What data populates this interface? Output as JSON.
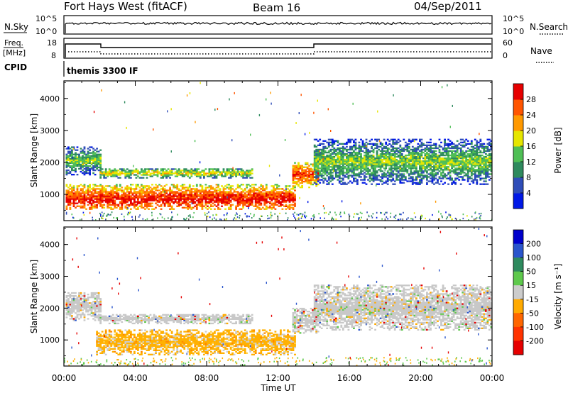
{
  "header": {
    "title": "Fort Hays West (fitACF)",
    "beam": "Beam 16",
    "date": "04/Sep/2011"
  },
  "nsky_panel": {
    "label": "N.Sky",
    "right_label": "N.Search",
    "left_ticks": [
      "10^5",
      "10^0"
    ],
    "right_ticks": [
      "10^5",
      "10^0"
    ]
  },
  "freq_panel": {
    "label_line1": "Freq.",
    "label_line2": "[MHz]",
    "right_label": "Nave",
    "left_ticks": [
      "18",
      "8"
    ],
    "right_ticks": [
      "60",
      "0"
    ]
  },
  "cpid_panel": {
    "label": "CPID",
    "text": "themis 3300 IF"
  },
  "time_axis": {
    "label": "Time UT",
    "ticks": [
      "00:00",
      "04:00",
      "08:00",
      "12:00",
      "16:00",
      "20:00",
      "00:00"
    ]
  },
  "chart_data": [
    {
      "type": "heatmap",
      "title": "",
      "xlabel": "Time UT",
      "ylabel": "Slant Range [km]",
      "xlim": [
        0,
        24
      ],
      "ylim": [
        180,
        4550
      ],
      "yticks": [
        "1000",
        "2000",
        "3000",
        "4000"
      ],
      "colorbar": {
        "label": "Power [dB]",
        "ticks": [
          "4",
          "8",
          "12",
          "16",
          "20",
          "24",
          "28"
        ],
        "colors": [
          "#0018e6",
          "#2f4db8",
          "#2e8a5e",
          "#4fbf55",
          "#e6e600",
          "#ff9900",
          "#ff5500",
          "#e60000"
        ]
      },
      "echo_regions": [
        {
          "name": "main-band-1",
          "t": [
            0.1,
            12.9
          ],
          "r": [
            520,
            1300
          ],
          "level": 5
        },
        {
          "name": "upper-band-1",
          "t": [
            0.1,
            2.1
          ],
          "r": [
            1600,
            2500
          ],
          "level": 2
        },
        {
          "name": "mid-band-1",
          "t": [
            2.0,
            10.5
          ],
          "r": [
            1500,
            1800
          ],
          "level": 3
        },
        {
          "name": "return-band-1",
          "t": [
            12.8,
            14.2
          ],
          "r": [
            1200,
            2000
          ],
          "level": 5
        },
        {
          "name": "evening-band-1",
          "t": [
            14.0,
            24.0
          ],
          "r": [
            1300,
            2700
          ],
          "level": 2
        }
      ]
    },
    {
      "type": "heatmap",
      "title": "",
      "xlabel": "Time UT",
      "ylabel": "Slant Range [km]",
      "xlim": [
        0,
        24
      ],
      "ylim": [
        180,
        4550
      ],
      "yticks": [
        "1000",
        "2000",
        "3000",
        "4000"
      ],
      "colorbar": {
        "label": "Velocity [m s⁻¹]",
        "ticks": [
          "200",
          "100",
          "50",
          "15",
          "-15",
          "-50",
          "-100",
          "-200"
        ],
        "colors": [
          "#0000cc",
          "#2a55cc",
          "#2e8a5e",
          "#5ec94c",
          "#cccccc",
          "#ffaa00",
          "#ff6600",
          "#ff3300",
          "#e60000"
        ]
      },
      "echo_regions": [
        {
          "name": "main-band-2",
          "t": [
            1.8,
            12.9
          ],
          "r": [
            520,
            1300
          ],
          "level": "orange"
        },
        {
          "name": "upper-band-2",
          "t": [
            0.1,
            2.1
          ],
          "r": [
            1600,
            2500
          ],
          "level": "gray"
        },
        {
          "name": "mid-band-2",
          "t": [
            2.0,
            10.5
          ],
          "r": [
            1500,
            1800
          ],
          "level": "gray"
        },
        {
          "name": "return-band-2",
          "t": [
            12.8,
            14.2
          ],
          "r": [
            1200,
            2000
          ],
          "level": "gray"
        },
        {
          "name": "evening-band-2",
          "t": [
            14.0,
            24.0
          ],
          "r": [
            1300,
            2700
          ],
          "level": "gray"
        }
      ]
    }
  ]
}
